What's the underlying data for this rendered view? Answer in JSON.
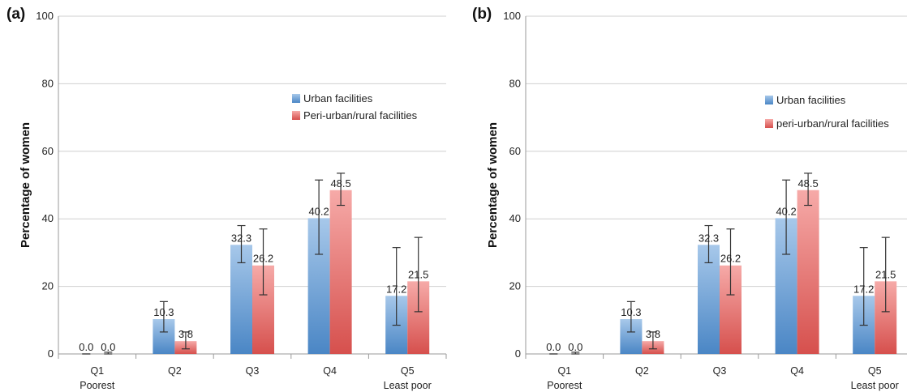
{
  "colors": {
    "urban_light": "#a7c8ea",
    "urban_dark": "#4a86c5",
    "rural_light": "#f6aaa8",
    "rural_dark": "#d6504d"
  },
  "chart_data": [
    {
      "panel_label": "(a)",
      "type": "bar",
      "ylabel": "Percentage of women",
      "ylim": [
        0,
        100
      ],
      "yticks": [
        0,
        20,
        40,
        60,
        80,
        100
      ],
      "grid": true,
      "legend_position": "upper-right",
      "categories": [
        {
          "line1": "Q1",
          "line2": "Poorest"
        },
        {
          "line1": "Q2",
          "line2": ""
        },
        {
          "line1": "Q3",
          "line2": ""
        },
        {
          "line1": "Q4",
          "line2": ""
        },
        {
          "line1": "Q5",
          "line2": "Least poor"
        }
      ],
      "series": [
        {
          "name": "Urban facilities",
          "values": [
            0.0,
            10.3,
            32.3,
            40.2,
            17.2
          ],
          "labels": [
            "0.0",
            "10.3",
            "32.3",
            "40.2",
            "17.2"
          ],
          "err_low": [
            0.0,
            6.5,
            27.0,
            29.5,
            8.5
          ],
          "err_high": [
            0.0,
            15.5,
            38.0,
            51.5,
            31.5
          ]
        },
        {
          "name": "Peri-urban/rural facilities",
          "values": [
            0.0,
            3.8,
            26.2,
            48.5,
            21.5
          ],
          "labels": [
            "0.0",
            "3.8",
            "26.2",
            "48.5",
            "21.5"
          ],
          "err_low": [
            0.0,
            1.5,
            17.5,
            44.0,
            12.5
          ],
          "err_high": [
            0.5,
            6.5,
            37.0,
            53.5,
            34.5
          ]
        }
      ]
    },
    {
      "panel_label": "(b)",
      "type": "bar",
      "ylabel": "Percentage of women",
      "ylim": [
        0,
        100
      ],
      "yticks": [
        0,
        20,
        40,
        60,
        80,
        100
      ],
      "grid": true,
      "legend_position": "upper-right",
      "categories": [
        {
          "line1": "Q1",
          "line2": "Poorest"
        },
        {
          "line1": "Q2",
          "line2": ""
        },
        {
          "line1": "Q3",
          "line2": ""
        },
        {
          "line1": "Q4",
          "line2": ""
        },
        {
          "line1": "Q5",
          "line2": "Least poor"
        }
      ],
      "series": [
        {
          "name": "Urban facilities",
          "values": [
            0.0,
            10.3,
            32.3,
            40.2,
            17.2
          ],
          "labels": [
            "0.0",
            "10.3",
            "32.3",
            "40.2",
            "17.2"
          ],
          "err_low": [
            0.0,
            6.5,
            27.0,
            29.5,
            8.5
          ],
          "err_high": [
            0.0,
            15.5,
            38.0,
            51.5,
            31.5
          ]
        },
        {
          "name": "peri-urban/rural facilities",
          "values": [
            0.0,
            3.8,
            26.2,
            48.5,
            21.5
          ],
          "labels": [
            "0.0",
            "3.8",
            "26.2",
            "48.5",
            "21.5"
          ],
          "err_low": [
            0.0,
            1.5,
            17.5,
            44.0,
            12.5
          ],
          "err_high": [
            0.5,
            6.5,
            37.0,
            53.5,
            34.5
          ]
        }
      ]
    }
  ]
}
